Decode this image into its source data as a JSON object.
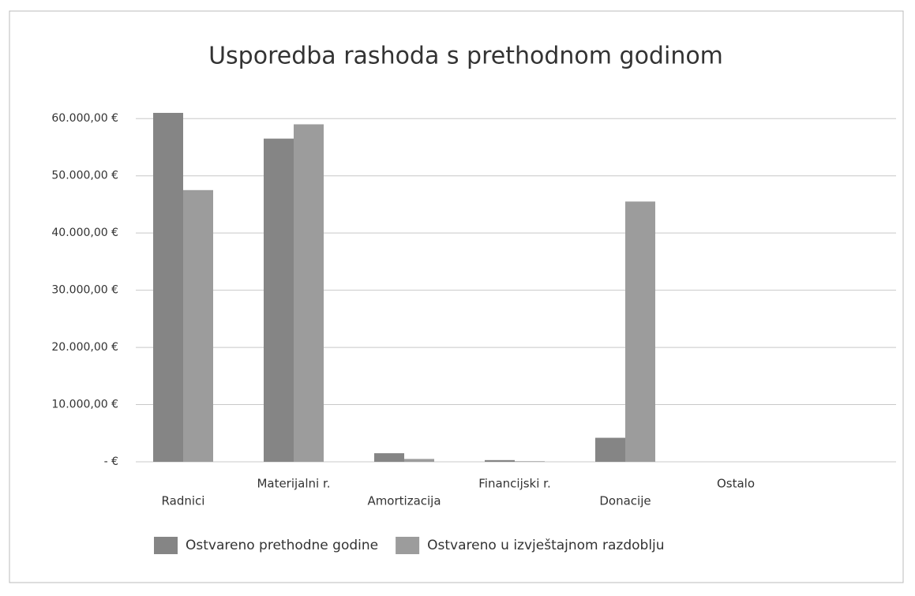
{
  "chart_data": {
    "type": "bar",
    "title": "Usporedba rashoda s prethodnom godinom",
    "categories": [
      "Radnici",
      "Materijalni r.",
      "Amortizacija",
      "Financijski r.",
      "Donacije",
      "Ostalo"
    ],
    "series": [
      {
        "name": "Ostvareno prethodne godine",
        "color": "#858585",
        "values": [
          61000,
          56500,
          1500,
          300,
          4200,
          0
        ]
      },
      {
        "name": "Ostvareno u izvještajnom razdoblju",
        "color": "#9c9c9c",
        "values": [
          47500,
          59000,
          500,
          100,
          45500,
          0
        ]
      }
    ],
    "ylim": [
      0,
      65000
    ],
    "yticks": [
      {
        "value": 0,
        "label": "-   €"
      },
      {
        "value": 10000,
        "label": "10.000,00 €"
      },
      {
        "value": 20000,
        "label": "20.000,00 €"
      },
      {
        "value": 30000,
        "label": "30.000,00 €"
      },
      {
        "value": 40000,
        "label": "40.000,00 €"
      },
      {
        "value": 50000,
        "label": "50.000,00 €"
      },
      {
        "value": 60000,
        "label": "60.000,00 €"
      }
    ],
    "grid": true,
    "legend": "bottom"
  }
}
